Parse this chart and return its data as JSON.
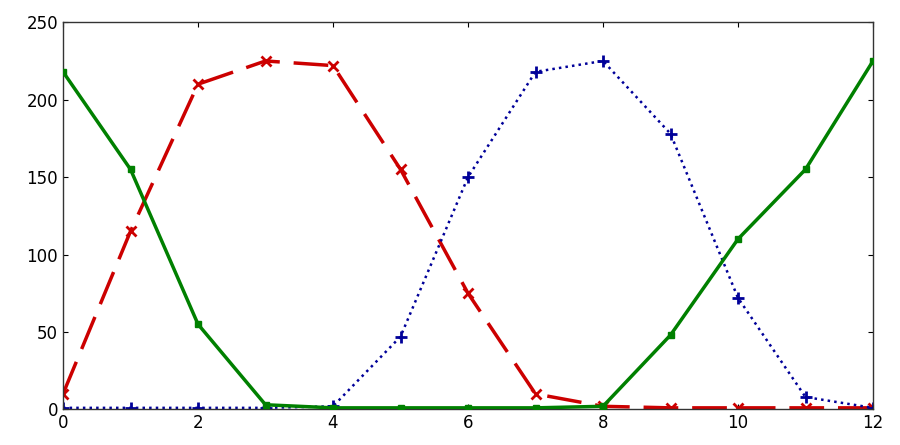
{
  "xlim": [
    0,
    12
  ],
  "ylim": [
    0,
    250
  ],
  "xticks": [
    0,
    2,
    4,
    6,
    8,
    10,
    12
  ],
  "yticks": [
    0,
    50,
    100,
    150,
    200,
    250
  ],
  "susceptible_x": [
    0,
    1,
    2,
    3,
    4,
    5,
    6,
    7,
    8,
    9,
    10,
    11,
    12
  ],
  "susceptible_y": [
    218,
    155,
    55,
    3,
    1,
    1,
    1,
    1,
    2,
    48,
    110,
    155,
    225
  ],
  "infected_x": [
    0,
    1,
    2,
    3,
    4,
    5,
    6,
    7,
    8,
    9,
    10,
    11,
    12
  ],
  "infected_y": [
    10,
    115,
    210,
    225,
    222,
    155,
    75,
    10,
    2,
    1,
    1,
    1,
    1
  ],
  "recovered_x": [
    0,
    1,
    2,
    3,
    4,
    5,
    6,
    7,
    8,
    9,
    10,
    11,
    12
  ],
  "recovered_y": [
    1,
    1,
    1,
    1,
    2,
    47,
    150,
    218,
    225,
    178,
    72,
    8,
    1
  ],
  "susceptible_color": "#008000",
  "infected_color": "#cc0000",
  "recovered_color": "#000099",
  "legend_box_edgecolor": "#99aacc",
  "background_color": "#ffffff"
}
